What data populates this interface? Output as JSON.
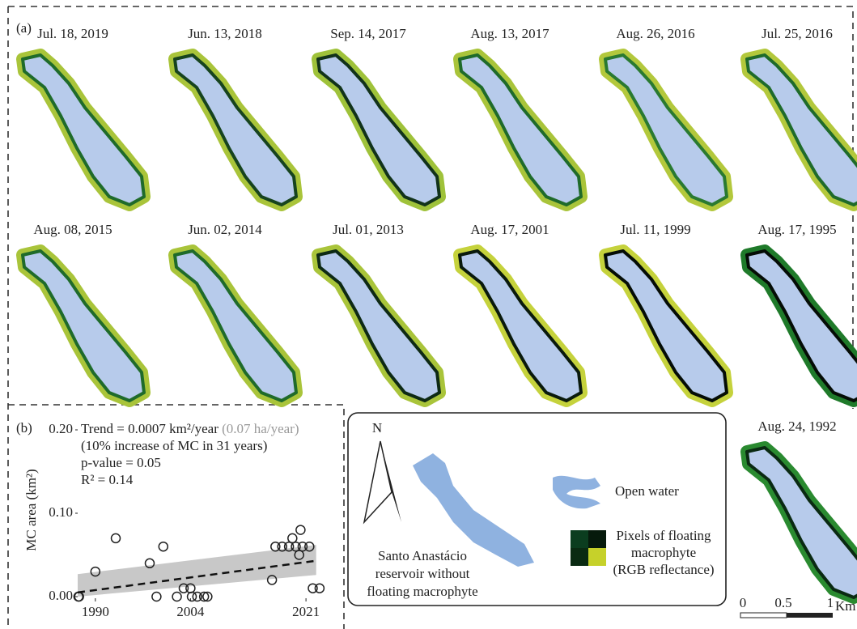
{
  "panel_a": {
    "label": "(a)",
    "maps": [
      "Jul. 18, 2019",
      "Jun. 13, 2018",
      "Sep. 14, 2017",
      "Aug. 13, 2017",
      "Aug. 26, 2016",
      "Jul. 25, 2016",
      "Aug. 08, 2015",
      "Jun. 02, 2014",
      "Jul. 01, 2013",
      "Aug. 17, 2001",
      "Jul. 11, 1999",
      "Aug. 17, 1995",
      "Aug. 24, 1992"
    ]
  },
  "legend": {
    "north": "N",
    "reservoir": [
      "Santo Anastácio",
      "reservoir without",
      "floating macrophyte"
    ],
    "water": "Open water",
    "pixels": [
      "Pixels of floating",
      "macrophyte",
      "(RGB reflectance)"
    ]
  },
  "scale_bar": {
    "labels": [
      "0",
      "0.5",
      "1"
    ],
    "unit": "Km"
  },
  "chart_data": {
    "type": "scatter",
    "panel_label": "(b)",
    "ylabel": "MC area (km²)",
    "annotations": {
      "trend": "Trend = 0.0007 km²/year",
      "trend_ha": "(0.07 ha/year)",
      "increase": "(10% increase of MC in 31 years)",
      "p_value": "p-value = 0.05",
      "r2": "R² = 0.14"
    },
    "x": [
      1987.5,
      1987.6,
      1990,
      1993,
      1998,
      1999,
      2000,
      2002,
      2003,
      2004,
      2004.2,
      2005,
      2006,
      2006.5,
      2016,
      2016.5,
      2017.5,
      2018.5,
      2019,
      2019.5,
      2020,
      2020.2,
      2020.5,
      2021.5,
      2022,
      2023
    ],
    "values": [
      0,
      0,
      0.03,
      0.07,
      0.04,
      0,
      0.06,
      0,
      0.01,
      0.01,
      0,
      0,
      0,
      0,
      0.02,
      0.06,
      0.06,
      0.06,
      0.07,
      0.06,
      0.05,
      0.08,
      0.06,
      0.06,
      0.01,
      0.01
    ],
    "color": "#222222",
    "trend_line": {
      "x": [
        1987.4,
        2022.5
      ],
      "values": [
        0.005,
        0.043
      ]
    },
    "confidence_band": {
      "x": [
        1987.4,
        2022.5
      ],
      "lower": [
        0,
        0.026
      ],
      "upper": [
        0.027,
        0.062
      ],
      "color": "#c8c8c8"
    },
    "xlim": [
      1987.4,
      2024.8
    ],
    "ylim": [
      0,
      0.2
    ],
    "xticks": [
      1990,
      2004,
      2021
    ],
    "yticks": [
      {
        "value": 0,
        "label": "0.00"
      },
      {
        "value": 0.1,
        "label": "0.10"
      },
      {
        "value": 0.2,
        "label": "0.20"
      }
    ]
  }
}
